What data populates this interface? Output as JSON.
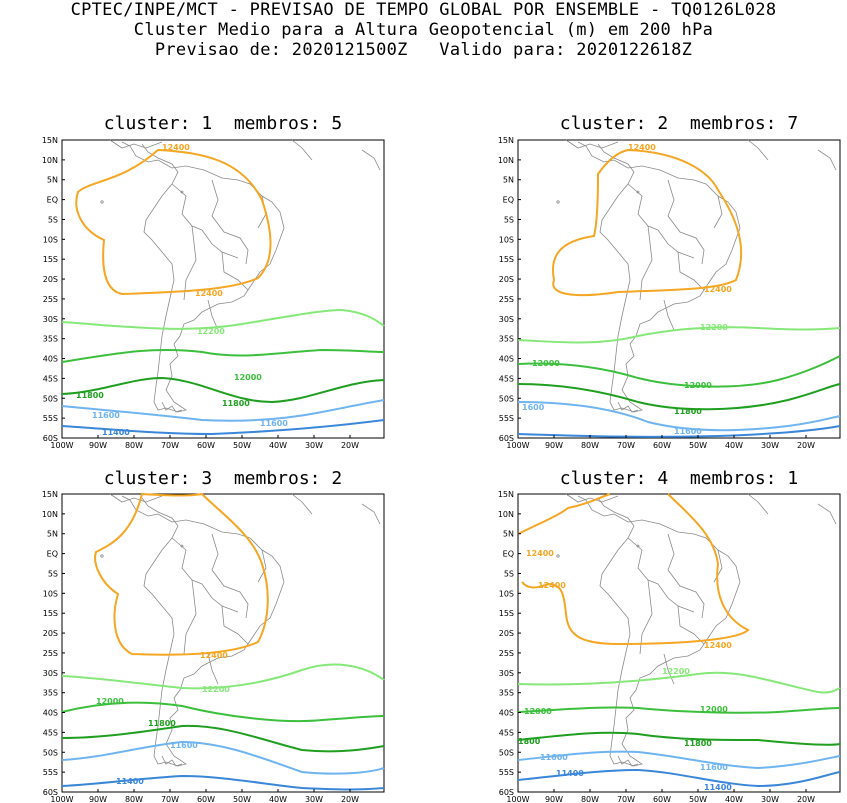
{
  "header": {
    "line1": "CPTEC/INPE/MCT - PREVISAO DE TEMPO GLOBAL POR ENSEMBLE - TQ0126L028",
    "line2": "Cluster Medio para a Altura Geopotencial (m) em 200 hPa",
    "line3": "Previsao de: 2020121500Z   Valido para: 2020122618Z"
  },
  "axes": {
    "lat_labels": [
      "15N",
      "10N",
      "5N",
      "EQ",
      "5S",
      "10S",
      "15S",
      "20S",
      "25S",
      "30S",
      "35S",
      "40S",
      "45S",
      "50S",
      "55S",
      "60S"
    ],
    "lon_labels": [
      "100W",
      "90W",
      "80W",
      "70W",
      "60W",
      "50W",
      "40W",
      "30W",
      "20W"
    ]
  },
  "colors": {
    "c12400": "#f5a623",
    "c12200": "#86e879",
    "c12000": "#3cbf3c",
    "c11800": "#1f9e1f",
    "c11600": "#6fb4f0",
    "c11400": "#3a86d8",
    "coast": "#8a8a8a"
  },
  "panels": [
    {
      "title": "cluster: 1  membros: 5",
      "labels": [
        "12400",
        "12400",
        "12200",
        "12000",
        "11800",
        "11800",
        "11600",
        "11600",
        "11400"
      ]
    },
    {
      "title": "cluster: 2  membros: 7",
      "labels": [
        "12400",
        "12400",
        "12200",
        "12000",
        "12000",
        "11800",
        "1600",
        "11600"
      ]
    },
    {
      "title": "cluster: 3  membros: 2",
      "labels": [
        "12400",
        "12200",
        "12000",
        "11800",
        "11600",
        "11400"
      ]
    },
    {
      "title": "cluster: 4  membros: 1",
      "labels": [
        "12400",
        "12400",
        "12400",
        "12200",
        "12000",
        "12000",
        "1800",
        "11800",
        "11600",
        "11600",
        "11400",
        "11400"
      ]
    }
  ]
}
